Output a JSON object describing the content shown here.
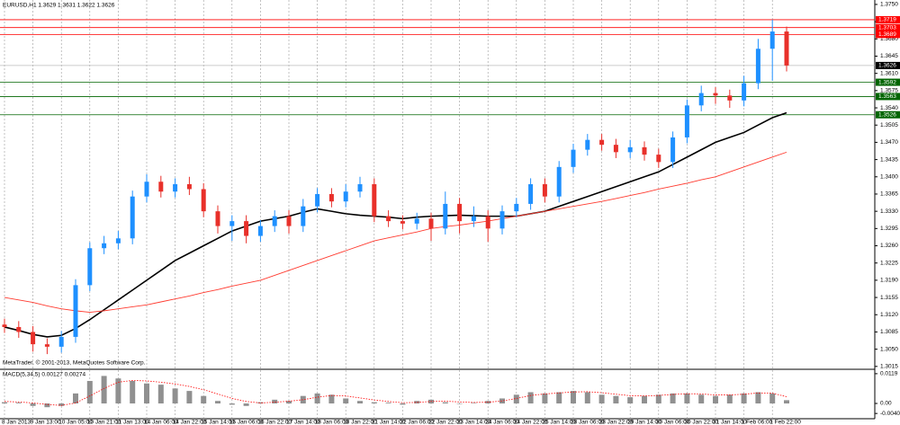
{
  "chart_data": [
    {
      "type": "candlestick",
      "title": "EURUSD,H1  1.3629 1.3631 1.3622 1.3626",
      "copyright": "MetaTrader, © 2001-2013, MetaQuotes Software Corp.",
      "categories": [
        "8 Jan 2013",
        null,
        "9 Jan 13:00",
        null,
        "10 Jan 05:00",
        null,
        "10 Jan 21:00",
        null,
        "11 Jan 13:00",
        null,
        "14 Jan 06:00",
        null,
        "14 Jan 22:00",
        null,
        "15 Jan 14:00",
        null,
        "16 Jan 06:00",
        null,
        "16 Jan 22:00",
        null,
        "17 Jan 14:00",
        null,
        "18 Jan 06:00",
        null,
        "18 Jan 22:00",
        null,
        "21 Jan 14:00",
        null,
        "22 Jan 06:00",
        null,
        "22 Jan 22:00",
        null,
        "23 Jan 14:00",
        null,
        "24 Jan 06:00",
        null,
        "24 Jan 22:00",
        null,
        "25 Jan 14:00",
        null,
        "28 Jan 06:00",
        null,
        "28 Jan 22:00",
        null,
        "29 Jan 14:00",
        null,
        "30 Jan 06:00",
        null,
        "30 Jan 22:00",
        null,
        "31 Jan 14:00",
        null,
        "1 Feb 06:00",
        null,
        "1 Feb 22:00",
        null
      ],
      "open": [
        1.31,
        1.3095,
        1.3085,
        1.306,
        1.3055,
        1.3075,
        1.318,
        1.3255,
        1.3265,
        1.3275,
        1.336,
        1.339,
        1.337,
        1.3385,
        1.3375,
        1.333,
        1.33,
        1.331,
        1.328,
        1.33,
        1.332,
        1.33,
        1.334,
        1.3365,
        1.335,
        1.337,
        1.3385,
        1.332,
        1.331,
        1.3305,
        1.3315,
        1.3295,
        1.3345,
        1.331,
        1.332,
        1.3295,
        1.333,
        1.3345,
        1.3385,
        1.336,
        1.342,
        1.3455,
        1.3475,
        1.3465,
        1.345,
        1.346,
        1.3445,
        1.343,
        1.348,
        1.3545,
        1.357,
        1.3565,
        1.3555,
        1.359,
        1.366,
        1.3695
      ],
      "high": [
        1.3112,
        1.3107,
        1.3097,
        1.3072,
        1.3087,
        1.3192,
        1.3267,
        1.328,
        1.329,
        1.3372,
        1.3405,
        1.3402,
        1.3397,
        1.34,
        1.3387,
        1.3342,
        1.3322,
        1.3322,
        1.3312,
        1.3332,
        1.3332,
        1.3355,
        1.3377,
        1.3377,
        1.3385,
        1.34,
        1.3397,
        1.3332,
        1.3322,
        1.3327,
        1.3327,
        1.337,
        1.3357,
        1.334,
        1.3332,
        1.3342,
        1.3357,
        1.3397,
        1.3397,
        1.3432,
        1.3467,
        1.3487,
        1.3487,
        1.3477,
        1.3475,
        1.3472,
        1.3457,
        1.3492,
        1.3557,
        1.3585,
        1.3582,
        1.3577,
        1.3605,
        1.368,
        1.3719,
        1.3705
      ],
      "low": [
        1.3083,
        1.3073,
        1.3045,
        1.304,
        1.3043,
        1.3063,
        1.3168,
        1.3243,
        1.3253,
        1.3263,
        1.3348,
        1.3358,
        1.3358,
        1.3363,
        1.3318,
        1.3285,
        1.327,
        1.3265,
        1.3268,
        1.3288,
        1.3285,
        1.3288,
        1.3328,
        1.3338,
        1.3338,
        1.3358,
        1.3308,
        1.3298,
        1.3293,
        1.3293,
        1.327,
        1.3283,
        1.3285,
        1.3298,
        1.3268,
        1.3283,
        1.3318,
        1.3333,
        1.3348,
        1.3348,
        1.3408,
        1.3443,
        1.3453,
        1.3438,
        1.3438,
        1.3433,
        1.3418,
        1.3418,
        1.3468,
        1.3533,
        1.3548,
        1.354,
        1.3543,
        1.3578,
        1.3595,
        1.3614
      ],
      "close": [
        1.3095,
        1.3085,
        1.306,
        1.3055,
        1.3075,
        1.318,
        1.3255,
        1.3265,
        1.3275,
        1.336,
        1.339,
        1.337,
        1.3385,
        1.3375,
        1.333,
        1.33,
        1.331,
        1.328,
        1.33,
        1.332,
        1.33,
        1.334,
        1.3365,
        1.335,
        1.337,
        1.3385,
        1.332,
        1.331,
        1.3305,
        1.3315,
        1.3295,
        1.3345,
        1.331,
        1.332,
        1.3295,
        1.333,
        1.3345,
        1.3385,
        1.336,
        1.342,
        1.3455,
        1.3475,
        1.3465,
        1.345,
        1.346,
        1.3445,
        1.343,
        1.348,
        1.3545,
        1.357,
        1.3565,
        1.3555,
        1.359,
        1.366,
        1.3695,
        1.3626
      ],
      "up_color": "#1e90ff",
      "down_color": "#e8302a",
      "series": [
        {
          "color": "#000000",
          "values": [
            1.3095,
            1.3088,
            1.308,
            1.3075,
            1.3078,
            1.3092,
            1.311,
            1.313,
            1.315,
            1.317,
            1.319,
            1.321,
            1.323,
            1.3245,
            1.326,
            1.3275,
            1.329,
            1.33,
            1.331,
            1.3315,
            1.332,
            1.3328,
            1.3335,
            1.333,
            1.3325,
            1.3322,
            1.332,
            1.3318,
            1.3315,
            1.3318,
            1.332,
            1.3321,
            1.3322,
            1.3321,
            1.332,
            1.332,
            1.332,
            1.3325,
            1.333,
            1.334,
            1.335,
            1.336,
            1.337,
            1.338,
            1.339,
            1.34,
            1.341,
            1.3425,
            1.344,
            1.3455,
            1.347,
            1.348,
            1.349,
            1.3505,
            1.352,
            1.353
          ]
        },
        {
          "color": "#ff3b30",
          "values": [
            1.3155,
            1.315,
            1.3145,
            1.3138,
            1.3132,
            1.3128,
            1.3125,
            1.3128,
            1.3132,
            1.3136,
            1.314,
            1.3146,
            1.3152,
            1.3158,
            1.3165,
            1.3171,
            1.3178,
            1.3184,
            1.319,
            1.32,
            1.321,
            1.322,
            1.323,
            1.324,
            1.325,
            1.326,
            1.327,
            1.3276,
            1.3282,
            1.3288,
            1.3295,
            1.3299,
            1.3302,
            1.3306,
            1.331,
            1.3315,
            1.332,
            1.3325,
            1.333,
            1.3335,
            1.334,
            1.3345,
            1.335,
            1.3356,
            1.3362,
            1.3368,
            1.3375,
            1.3381,
            1.3387,
            1.3394,
            1.34,
            1.341,
            1.342,
            1.343,
            1.344,
            1.345
          ]
        }
      ],
      "levels": [
        {
          "value": 1.3719,
          "color": "#ff0000"
        },
        {
          "value": 1.3703,
          "color": "#ff0000"
        },
        {
          "value": 1.3689,
          "color": "#ff0000"
        },
        {
          "value": 1.3592,
          "color": "#006400"
        },
        {
          "value": 1.3563,
          "color": "#006400"
        },
        {
          "value": 1.3526,
          "color": "#006400"
        }
      ],
      "last_price": 1.3626,
      "ylim": [
        1.3011,
        1.3759
      ],
      "yticks": [
        {
          "value": 1.375,
          "label": "1.3750"
        },
        1.3715,
        {
          "value": 1.368,
          "label": "1.3680"
        },
        1.3645,
        {
          "value": 1.361,
          "label": "1.3610"
        },
        1.3575,
        {
          "value": 1.354,
          "label": "1.3540"
        },
        1.3505,
        {
          "value": 1.347,
          "label": "1.3470"
        },
        1.3435,
        {
          "value": 1.34,
          "label": "1.3400"
        },
        1.3365,
        {
          "value": 1.333,
          "label": "1.3330"
        },
        1.3295,
        {
          "value": 1.326,
          "label": "1.3260"
        },
        1.3225,
        {
          "value": 1.319,
          "label": "1.3190"
        },
        1.3155,
        {
          "value": 1.312,
          "label": "1.3120"
        },
        1.3085,
        {
          "value": 1.305,
          "label": "1.3050"
        },
        1.3015
      ],
      "grid": true
    },
    {
      "type": "bar",
      "title": "MACD(5,34,5) 0.00127 0.00274",
      "color": "#909090",
      "signal_color": "#ff0000",
      "values": [
        0.0005,
        0.0003,
        -0.001,
        -0.0015,
        -0.001,
        0.004,
        0.009,
        0.011,
        0.01,
        0.009,
        0.008,
        0.0075,
        0.006,
        0.005,
        0.003,
        0.001,
        -0.0005,
        -0.001,
        0.0005,
        0.0015,
        0.001,
        0.003,
        0.004,
        0.0035,
        0.002,
        0.001,
        0.0005,
        0.0003,
        -0.0005,
        0.001,
        0.0015,
        0.0005,
        0.0,
        0.0002,
        0.001,
        0.002,
        0.0035,
        0.0045,
        0.004,
        0.0045,
        0.005,
        0.0045,
        0.0035,
        0.003,
        0.0025,
        0.003,
        0.0035,
        0.004,
        0.004,
        0.0035,
        0.003,
        0.0035,
        0.004,
        0.0045,
        0.004,
        0.0013
      ],
      "signal": [
        0.0008,
        0.0006,
        0.0002,
        -0.0004,
        -0.0008,
        0.0002,
        0.003,
        0.006,
        0.0085,
        0.0092,
        0.009,
        0.0085,
        0.0078,
        0.0068,
        0.0055,
        0.0038,
        0.002,
        0.0008,
        0.0002,
        0.0005,
        0.0009,
        0.0015,
        0.0025,
        0.0032,
        0.003,
        0.0022,
        0.0014,
        0.0008,
        0.0003,
        0.0004,
        0.0008,
        0.0009,
        0.0006,
        0.0004,
        0.0005,
        0.001,
        0.002,
        0.0032,
        0.0038,
        0.0042,
        0.0046,
        0.0047,
        0.0043,
        0.0037,
        0.0031,
        0.003,
        0.0032,
        0.0036,
        0.0039,
        0.0038,
        0.0034,
        0.0034,
        0.0037,
        0.0042,
        0.0041,
        0.0027
      ],
      "ylim": [
        -0.0061,
        0.0133
      ],
      "yticks": [
        0.0119,
        {
          "value": 0,
          "label": "0.00"
        },
        {
          "value": -0.004,
          "label": "-0.0040"
        }
      ]
    }
  ]
}
